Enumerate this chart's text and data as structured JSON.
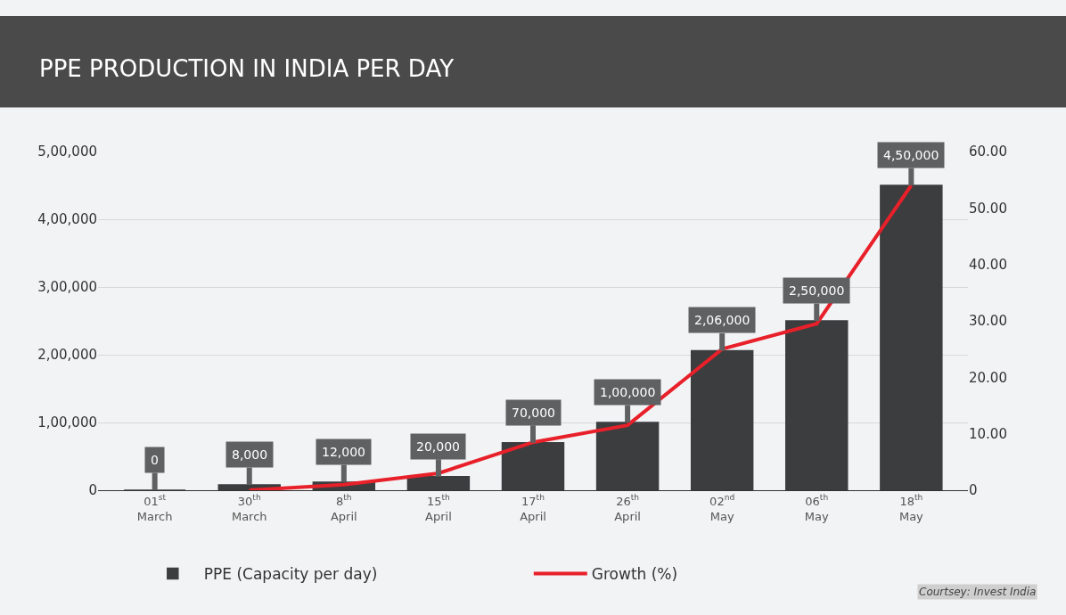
{
  "chart_data": {
    "type": "bar",
    "title": "PPE PRODUCTION IN INDIA PER DAY",
    "categories": [
      "01$^{st}$\nMarch",
      "30$^{th}$\nMarch",
      "8$^{th}$\nApril",
      "15$^{th}$\nApril",
      "17$^{th}$\nApril",
      "26$^{th}$\nApril",
      "02$^{nd}$\nMay",
      "06$^{th}$\nMay",
      "18$^{th}$\nMay"
    ],
    "series": [
      {
        "name": "PPE (Capacity per day)",
        "color": "#3b3d3f",
        "values": [
          0,
          8000,
          12000,
          20000,
          70000,
          100000,
          206000,
          250000,
          450000
        ],
        "value_labels": [
          "0",
          "8,000",
          "12,000",
          "20,000",
          "70,000",
          "1,00,000",
          "2,06,000",
          "2,50,000",
          "4,50,000"
        ]
      },
      {
        "name": "Growth (%)",
        "type": "line",
        "axis": "y2",
        "color": "#e8202a",
        "values": [
          null,
          0,
          1,
          3,
          8.5,
          11.5,
          25,
          29.5,
          54
        ]
      }
    ],
    "ylim": [
      0,
      500000
    ],
    "yticks": [
      0,
      {
        "value": 100000,
        "label": "1,00,000"
      },
      {
        "value": 200000,
        "label": "2,00,000"
      },
      {
        "value": 300000,
        "label": "3,00,000"
      },
      {
        "value": 400000,
        "label": "4,00,000"
      },
      {
        "value": 500000,
        "label": "5,00,000"
      }
    ],
    "y2lim": [
      0,
      60
    ],
    "y2ticks": [
      0,
      {
        "value": 10,
        "label": "10.00"
      },
      {
        "value": 20,
        "label": "20.00"
      },
      {
        "value": 30,
        "label": "30.00"
      },
      {
        "value": 40,
        "label": "40.00"
      },
      {
        "value": 50,
        "label": "50.00"
      },
      {
        "value": 60,
        "label": "60.00"
      }
    ],
    "grid": "y",
    "legend": "bottom",
    "annotations": [
      "Courtsey: Invest India"
    ]
  }
}
